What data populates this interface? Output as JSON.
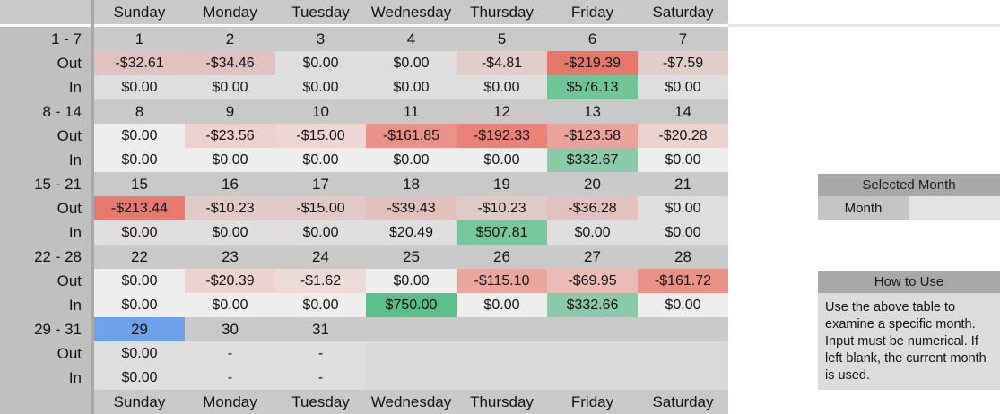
{
  "days_header": [
    "Sunday",
    "Monday",
    "Tuesday",
    "Wednesday",
    "Thursday",
    "Friday",
    "Saturday"
  ],
  "weeks": [
    {
      "range": "1 - 7",
      "days": [
        "1",
        "2",
        "3",
        "4",
        "5",
        "6",
        "7"
      ],
      "out": [
        "-$32.61",
        "-$34.46",
        "$0.00",
        "$0.00",
        "-$4.81",
        "-$219.39",
        "-$7.59"
      ],
      "in": [
        "$0.00",
        "$0.00",
        "$0.00",
        "$0.00",
        "$0.00",
        "$576.13",
        "$0.00"
      ]
    },
    {
      "range": "8 - 14",
      "days": [
        "8",
        "9",
        "10",
        "11",
        "12",
        "13",
        "14"
      ],
      "out": [
        "$0.00",
        "-$23.56",
        "-$15.00",
        "-$161.85",
        "-$192.33",
        "-$123.58",
        "-$20.28"
      ],
      "in": [
        "$0.00",
        "$0.00",
        "$0.00",
        "$0.00",
        "$0.00",
        "$332.67",
        "$0.00"
      ]
    },
    {
      "range": "15 - 21",
      "days": [
        "15",
        "16",
        "17",
        "18",
        "19",
        "20",
        "21"
      ],
      "out": [
        "-$213.44",
        "-$10.23",
        "-$15.00",
        "-$39.43",
        "-$10.23",
        "-$36.28",
        "$0.00"
      ],
      "in": [
        "$0.00",
        "$0.00",
        "$0.00",
        "$20.49",
        "$507.81",
        "$0.00",
        "$0.00"
      ]
    },
    {
      "range": "22 - 28",
      "days": [
        "22",
        "23",
        "24",
        "25",
        "26",
        "27",
        "28"
      ],
      "out": [
        "$0.00",
        "-$20.39",
        "-$1.62",
        "$0.00",
        "-$115.10",
        "-$69.95",
        "-$161.72"
      ],
      "in": [
        "$0.00",
        "$0.00",
        "$0.00",
        "$750.00",
        "$0.00",
        "$332.66",
        "$0.00"
      ]
    },
    {
      "range": "29 - 31",
      "days": [
        "29",
        "30",
        "31",
        "",
        "",
        "",
        ""
      ],
      "out": [
        "$0.00",
        "-",
        "-",
        "",
        "",
        "",
        ""
      ],
      "in": [
        "$0.00",
        "-",
        "-",
        "",
        "",
        "",
        ""
      ]
    }
  ],
  "out_label": "Out",
  "in_label": "In",
  "selected_month": {
    "title": "Selected Month",
    "label": "Month",
    "value": ""
  },
  "how_to_use": {
    "title": "How to Use",
    "text": "Use the above table to examine a specific month. Input must be numerical. If left blank, the current month is used."
  },
  "colors": {
    "header_bg": "#c9c9c9",
    "row_label_bg": "#c0c0c0",
    "divider": "#a9a9a9",
    "selected_day": "#6fa0ea",
    "expense_red": "#e8776b",
    "income_green": "#5cbf8a"
  }
}
